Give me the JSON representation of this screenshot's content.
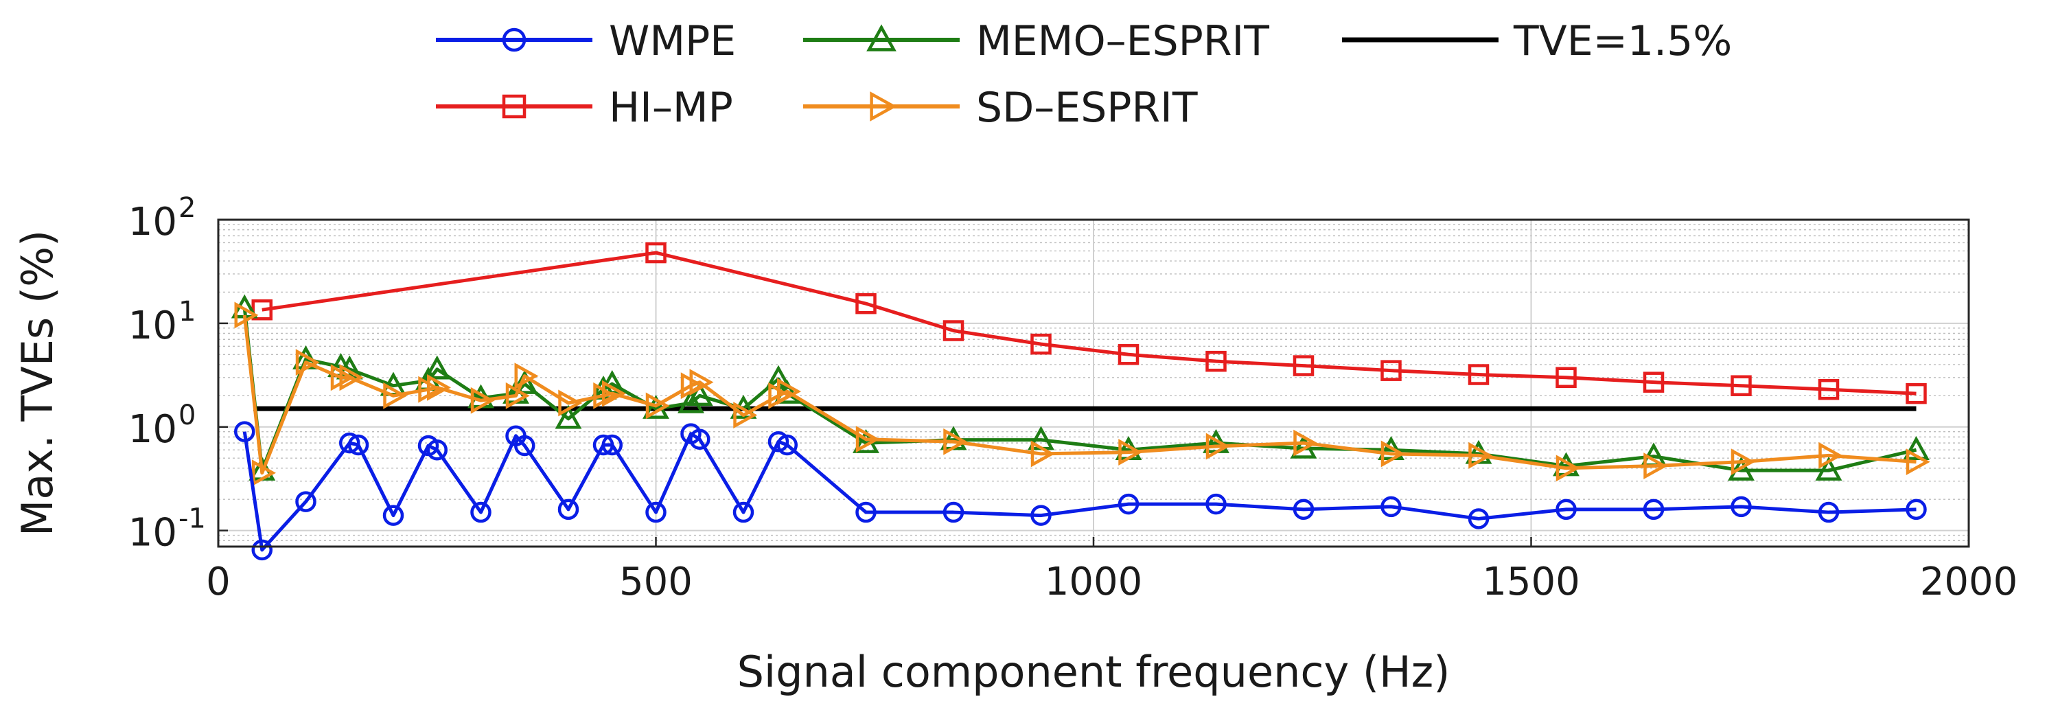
{
  "chart_data": {
    "type": "line",
    "title": "",
    "xlabel": "Signal component frequency (Hz)",
    "ylabel": "Max. TVEs (%)",
    "xlim": [
      0,
      2000
    ],
    "ylim": [
      0.07,
      100
    ],
    "yscale": "log",
    "grid": true,
    "legend_position": "top",
    "x_ticks": [
      "0",
      "500",
      "1000",
      "1500",
      "2000"
    ],
    "x_tick_values": [
      0,
      500,
      1000,
      1500,
      2000
    ],
    "y_ticks": [
      {
        "base": "10",
        "exp": "-1",
        "value": 0.1
      },
      {
        "base": "10",
        "exp": "0",
        "value": 1
      },
      {
        "base": "10",
        "exp": "1",
        "value": 10
      },
      {
        "base": "10",
        "exp": "2",
        "value": 100
      }
    ],
    "series": [
      {
        "name": "WMPE",
        "color": "#0a1ee6",
        "marker": "circle",
        "x": [
          30,
          50,
          100,
          150,
          160,
          200,
          240,
          250,
          300,
          340,
          350,
          400,
          440,
          450,
          500,
          540,
          550,
          600,
          640,
          650,
          740,
          840,
          940,
          1040,
          1140,
          1240,
          1340,
          1440,
          1540,
          1640,
          1740,
          1840,
          1940
        ],
        "y": [
          0.9,
          0.065,
          0.19,
          0.7,
          0.67,
          0.14,
          0.66,
          0.6,
          0.15,
          0.82,
          0.66,
          0.16,
          0.67,
          0.67,
          0.15,
          0.86,
          0.76,
          0.15,
          0.72,
          0.67,
          0.15,
          0.15,
          0.14,
          0.18,
          0.18,
          0.16,
          0.17,
          0.13,
          0.16,
          0.16,
          0.17,
          0.15,
          0.16
        ]
      },
      {
        "name": "HI–MP",
        "color": "#e61e1e",
        "marker": "square",
        "x": [
          50,
          500,
          740,
          840,
          940,
          1040,
          1140,
          1240,
          1340,
          1440,
          1540,
          1640,
          1740,
          1840,
          1940
        ],
        "y": [
          13.5,
          48,
          15.5,
          8.5,
          6.3,
          5.0,
          4.3,
          3.9,
          3.5,
          3.2,
          3.0,
          2.7,
          2.5,
          2.3,
          2.1
        ]
      },
      {
        "name": "MEMO–ESPRIT",
        "color": "#1e7d14",
        "marker": "triangle",
        "x": [
          30,
          50,
          100,
          140,
          150,
          200,
          240,
          250,
          300,
          340,
          350,
          400,
          440,
          450,
          500,
          540,
          550,
          600,
          640,
          650,
          740,
          840,
          940,
          1040,
          1140,
          1240,
          1340,
          1440,
          1540,
          1640,
          1740,
          1840,
          1940
        ],
        "y": [
          14,
          0.38,
          4.5,
          3.8,
          3.6,
          2.5,
          2.8,
          3.6,
          1.9,
          2.1,
          2.6,
          1.2,
          2.3,
          2.6,
          1.5,
          1.7,
          2.0,
          1.5,
          2.9,
          2.1,
          0.7,
          0.75,
          0.75,
          0.6,
          0.7,
          0.62,
          0.6,
          0.55,
          0.42,
          0.52,
          0.38,
          0.38,
          0.6
        ]
      },
      {
        "name": "SD–ESPRIT",
        "color": "#f08c1e",
        "marker": "triangle-right",
        "x": [
          30,
          50,
          100,
          140,
          150,
          200,
          240,
          250,
          300,
          340,
          350,
          400,
          440,
          450,
          500,
          540,
          550,
          600,
          640,
          650,
          740,
          840,
          940,
          1040,
          1140,
          1240,
          1340,
          1440,
          1540,
          1640,
          1740,
          1840,
          1940
        ],
        "y": [
          12,
          0.36,
          4.2,
          3.0,
          3.0,
          2.0,
          2.3,
          2.4,
          1.8,
          2.0,
          3.1,
          1.7,
          2.0,
          2.1,
          1.6,
          2.5,
          2.7,
          1.3,
          2.0,
          2.2,
          0.76,
          0.72,
          0.55,
          0.57,
          0.65,
          0.7,
          0.55,
          0.53,
          0.4,
          0.42,
          0.46,
          0.53,
          0.46
        ]
      }
    ],
    "reference_line": {
      "name": "TVE=1.5%",
      "y": 1.5,
      "x_start": 40,
      "x_end": 1940,
      "color": "#000000"
    }
  }
}
